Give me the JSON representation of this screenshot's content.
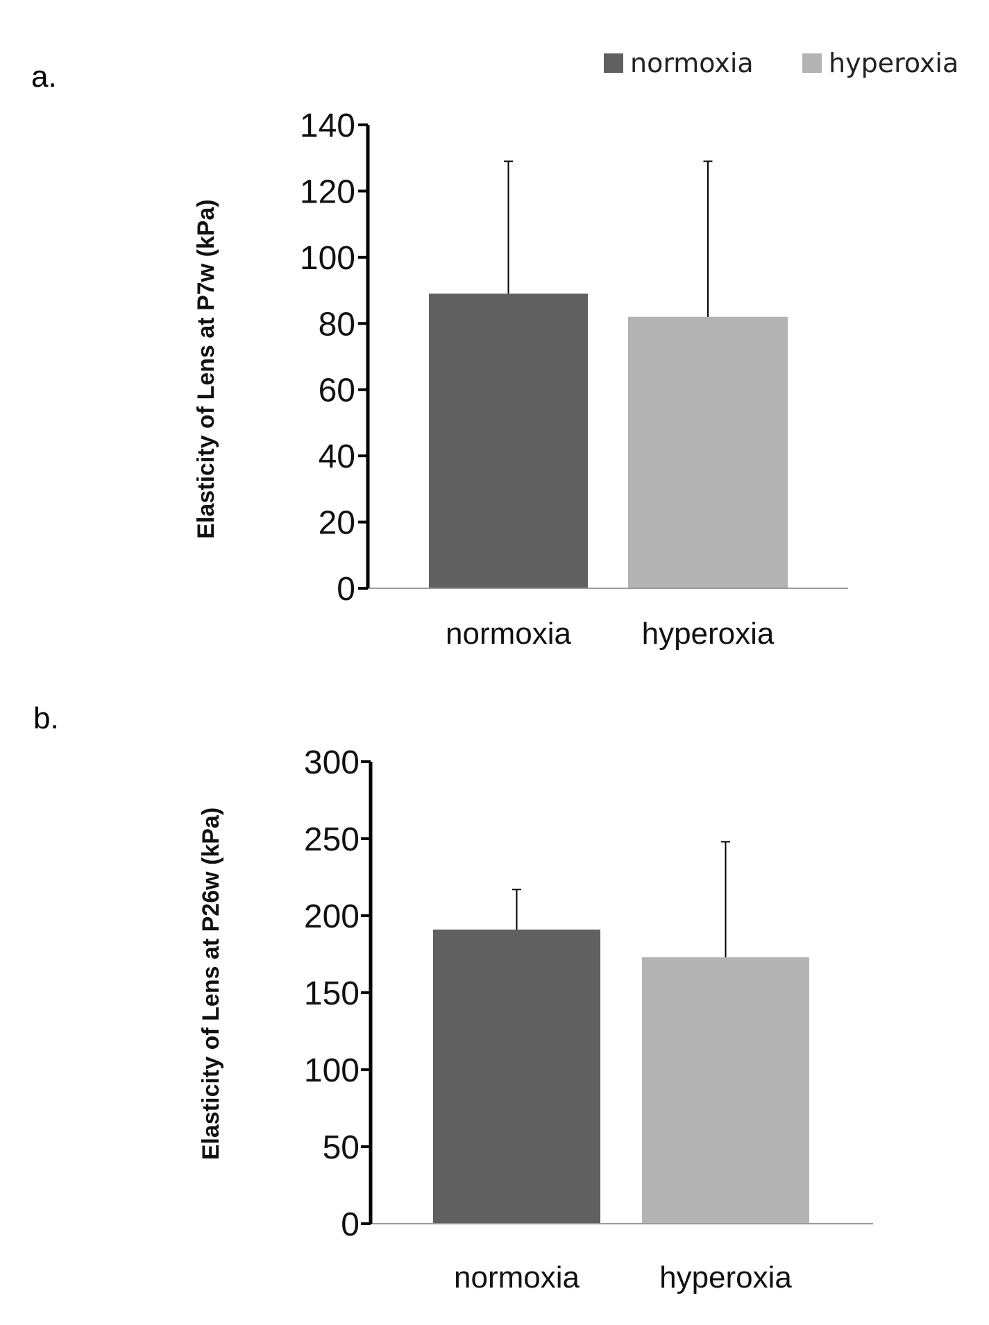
{
  "legend": {
    "items": [
      {
        "label": "normoxia",
        "color": "#606060"
      },
      {
        "label": "hyperoxia",
        "color": "#b3b3b3"
      }
    ]
  },
  "chart_data": [
    {
      "panel_label": "a.",
      "type": "bar",
      "categories": [
        "normoxia",
        "hyperoxia"
      ],
      "values": [
        89,
        82
      ],
      "error_upper": [
        129,
        129
      ],
      "colors": [
        "#606060",
        "#b3b3b3"
      ],
      "ylabel": "Elasticity of Lens at P7w (kPa)",
      "xlabel": "",
      "ylim": [
        0,
        140
      ],
      "yticks": [
        0,
        20,
        40,
        60,
        80,
        100,
        120,
        140
      ],
      "grid": false
    },
    {
      "panel_label": "b.",
      "type": "bar",
      "categories": [
        "normoxia",
        "hyperoxia"
      ],
      "values": [
        191,
        173
      ],
      "error_upper": [
        217,
        248
      ],
      "colors": [
        "#606060",
        "#b3b3b3"
      ],
      "ylabel": "Elasticity of  Lens at P26w (kPa)",
      "xlabel": "",
      "ylim": [
        0,
        300
      ],
      "yticks": [
        0,
        50,
        100,
        150,
        200,
        250,
        300
      ],
      "grid": false
    }
  ]
}
